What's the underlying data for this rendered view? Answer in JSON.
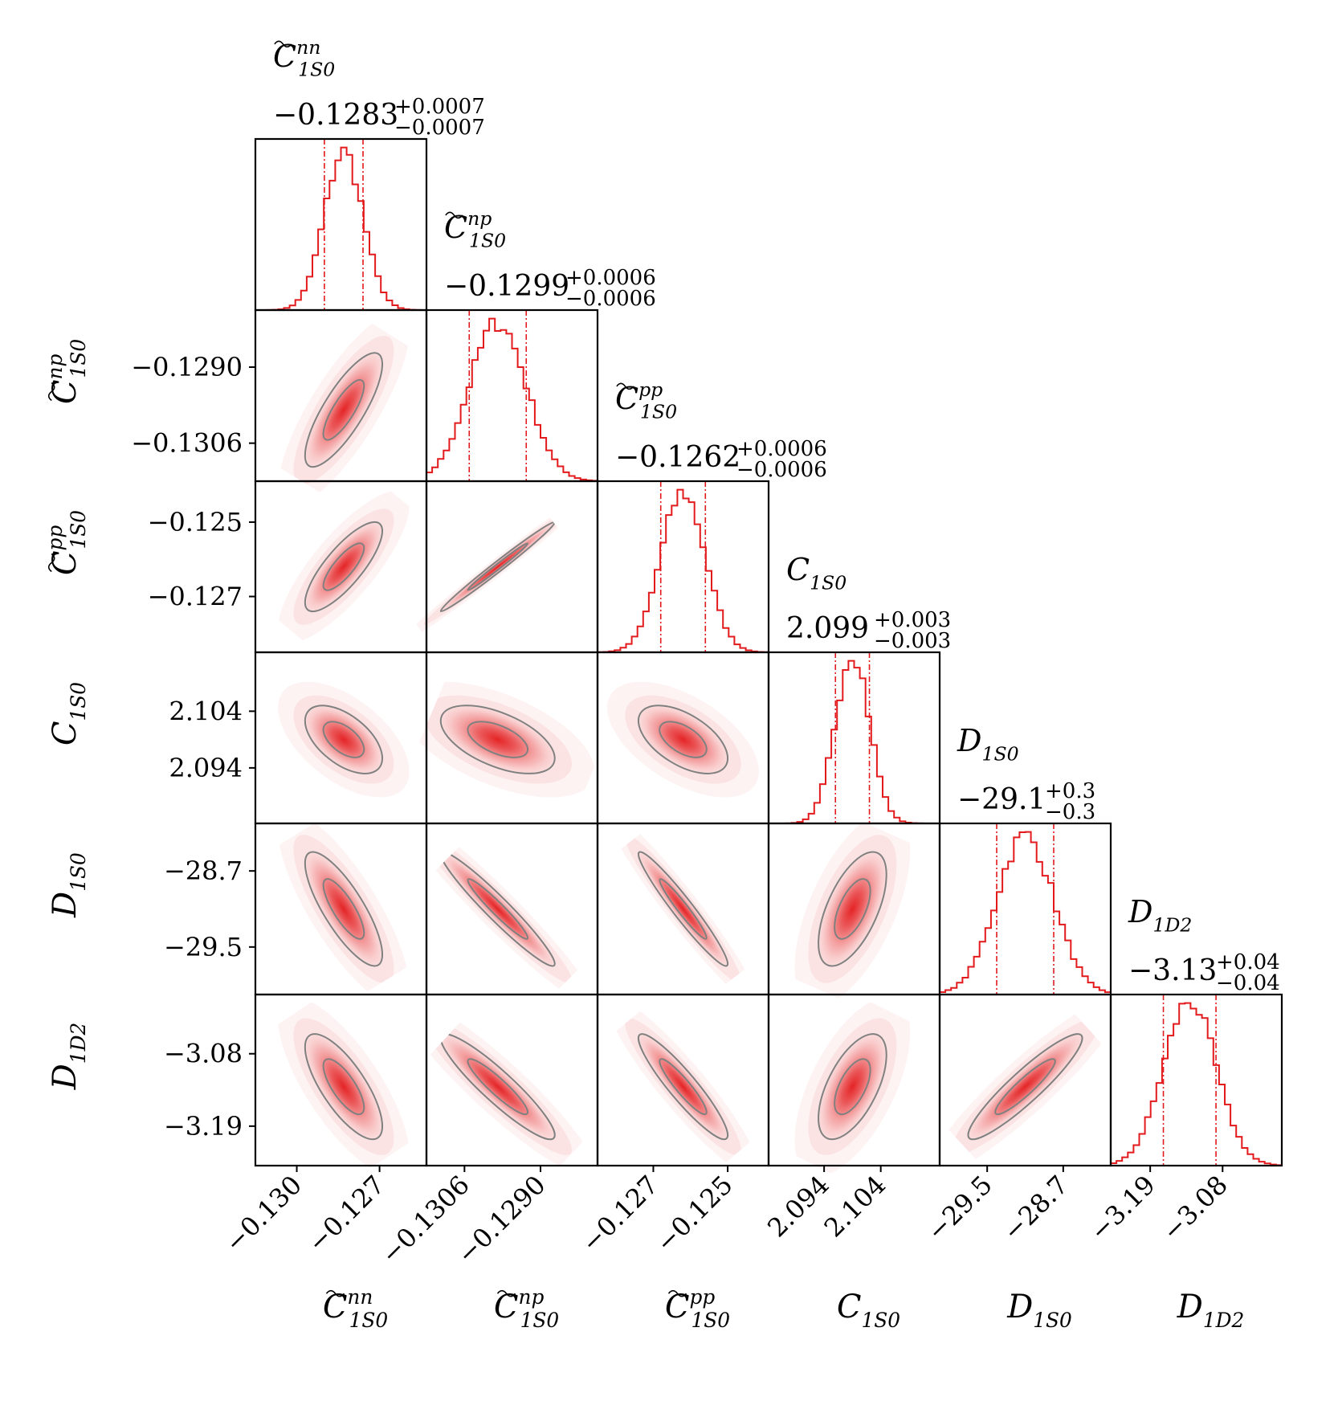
{
  "chart_data": {
    "type": "corner",
    "description_colors": {
      "hist": "#e31a1c",
      "contour": "#808080",
      "fill": "#e31a1c",
      "frame": "#000000"
    },
    "parameters": [
      {
        "key": "cnn",
        "label_base": "C",
        "label_sub": "1S0",
        "label_sup": "nn",
        "tilde": true,
        "title_value": "−0.1283",
        "err_plus": "+0.0007",
        "err_minus": "−0.0007",
        "median": -0.1283,
        "sigma": 0.0007,
        "range": [
          -0.1315,
          -0.1253
        ],
        "ticks": [
          {
            "v": -0.13,
            "label": "−0.130"
          },
          {
            "v": -0.127,
            "label": "−0.127"
          }
        ]
      },
      {
        "key": "cnp",
        "label_base": "C",
        "label_sub": "1S0",
        "label_sup": "np",
        "tilde": true,
        "title_value": "−0.1299",
        "err_plus": "+0.0006",
        "err_minus": "−0.0006",
        "median": -0.1299,
        "sigma": 0.0006,
        "range": [
          -0.1314,
          -0.1278
        ],
        "ticks": [
          {
            "v": -0.1306,
            "label": "−0.1306"
          },
          {
            "v": -0.129,
            "label": "−0.1290"
          }
        ]
      },
      {
        "key": "cpp",
        "label_base": "C",
        "label_sub": "1S0",
        "label_sup": "pp",
        "tilde": true,
        "title_value": "−0.1262",
        "err_plus": "+0.0006",
        "err_minus": "−0.0006",
        "median": -0.1262,
        "sigma": 0.0006,
        "range": [
          -0.1285,
          -0.1239
        ],
        "ticks": [
          {
            "v": -0.127,
            "label": "−0.127"
          },
          {
            "v": -0.125,
            "label": "−0.125"
          }
        ]
      },
      {
        "key": "c1s0",
        "label_base": "C",
        "label_sub": "1S0",
        "label_sup": "",
        "tilde": false,
        "title_value": "2.099",
        "err_plus": "+0.003",
        "err_minus": "−0.003",
        "median": 2.099,
        "sigma": 0.003,
        "range": [
          2.0842,
          2.1144
        ],
        "ticks": [
          {
            "v": 2.094,
            "label": "2.094"
          },
          {
            "v": 2.104,
            "label": "2.104"
          }
        ]
      },
      {
        "key": "d1s0",
        "label_base": "D",
        "label_sub": "1S0",
        "label_sup": "",
        "tilde": false,
        "title_value": "−29.1",
        "err_plus": "+0.3",
        "err_minus": "−0.3",
        "median": -29.1,
        "sigma": 0.3,
        "range": [
          -30.0,
          -28.2
        ],
        "ticks": [
          {
            "v": -29.5,
            "label": "−29.5"
          },
          {
            "v": -28.7,
            "label": "−28.7"
          }
        ]
      },
      {
        "key": "d1d2",
        "label_base": "D",
        "label_sub": "1D2",
        "label_sup": "",
        "tilde": false,
        "title_value": "−3.13",
        "err_plus": "+0.04",
        "err_minus": "−0.04",
        "median": -3.13,
        "sigma": 0.04,
        "range": [
          -3.25,
          -2.99
        ],
        "ticks": [
          {
            "v": -3.19,
            "label": "−3.19"
          },
          {
            "v": -3.08,
            "label": "−3.08"
          }
        ]
      }
    ],
    "correlations": [
      [
        1.0,
        0.8,
        0.8,
        -0.55,
        -0.8,
        -0.75
      ],
      [
        0.8,
        1.0,
        0.99,
        -0.55,
        -0.96,
        -0.92
      ],
      [
        0.8,
        0.99,
        1.0,
        -0.55,
        -0.96,
        -0.92
      ],
      [
        -0.55,
        -0.55,
        -0.55,
        1.0,
        0.6,
        0.6
      ],
      [
        -0.8,
        -0.96,
        -0.96,
        0.6,
        1.0,
        0.92
      ],
      [
        -0.75,
        -0.92,
        -0.92,
        0.6,
        0.92,
        1.0
      ]
    ]
  }
}
